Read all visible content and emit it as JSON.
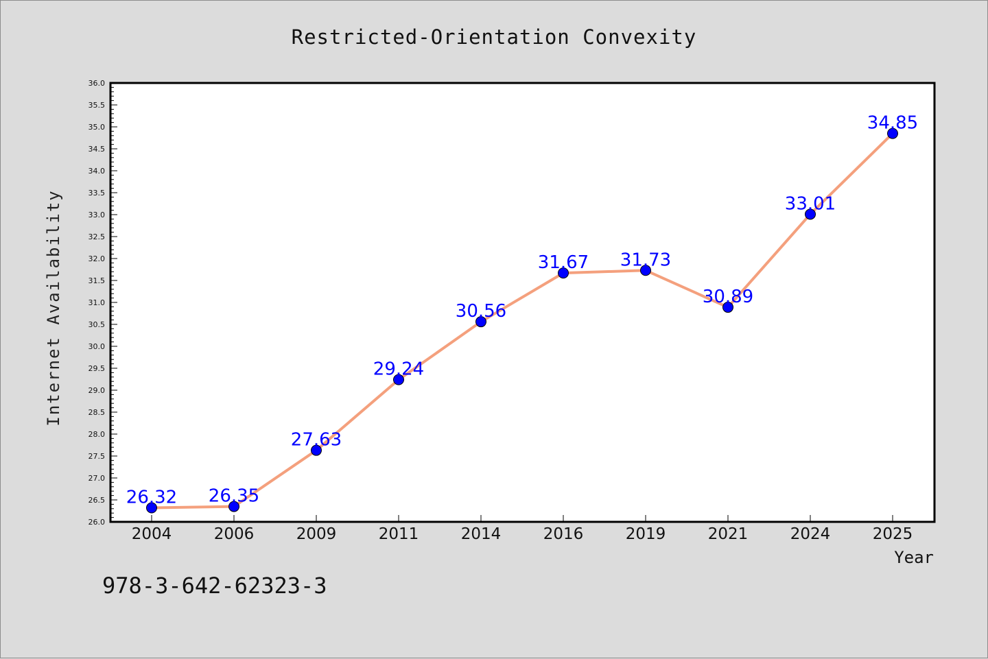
{
  "chart_data": {
    "type": "line",
    "title": "Restricted-Orientation Convexity",
    "xlabel": "Year",
    "ylabel": "Internet Availability",
    "categories": [
      "2004",
      "2006",
      "2009",
      "2011",
      "2014",
      "2016",
      "2019",
      "2021",
      "2024",
      "2025"
    ],
    "series": [
      {
        "values": [
          26.32,
          26.35,
          27.63,
          29.24,
          30.56,
          31.67,
          31.73,
          30.89,
          33.01,
          34.85
        ],
        "line_color": "#f4a07d",
        "marker_color": "#0000ff"
      }
    ],
    "data_labels": [
      "26.32",
      "26.35",
      "27.63",
      "29.24",
      "30.56",
      "31.67",
      "31.73",
      "30.89",
      "33.01",
      "34.85"
    ],
    "ylim": [
      26.0,
      36.0
    ],
    "yticks": [
      "26.0",
      "26.5",
      "27.0",
      "27.5",
      "28.0",
      "28.5",
      "29.0",
      "29.5",
      "30.0",
      "30.5",
      "31.0",
      "31.5",
      "32.0",
      "32.5",
      "33.0",
      "33.5",
      "34.0",
      "34.5",
      "35.0",
      "35.5",
      "36.0"
    ],
    "grid": false,
    "label_color": "#0000ff"
  },
  "annotation": {
    "text": "978-3-642-62323-3"
  },
  "colors": {
    "background": "#dcdcdc",
    "plot_background": "#ffffff"
  }
}
